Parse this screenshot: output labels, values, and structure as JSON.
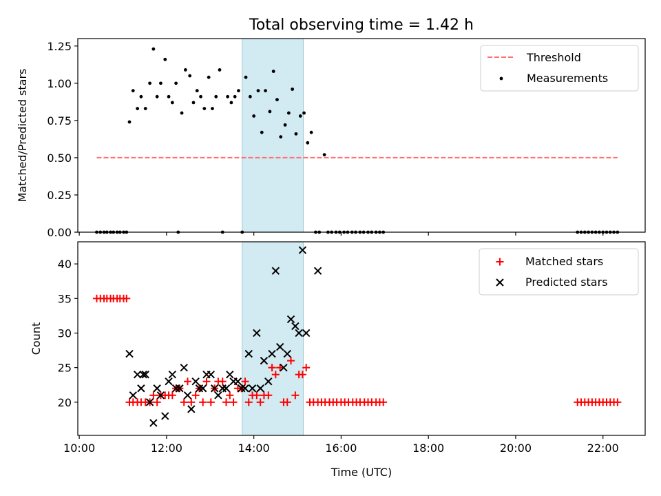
{
  "title": "Total observing time = 1.42 h",
  "chart_data": [
    {
      "type": "scatter",
      "ylabel": "Matched/Predicted stars",
      "xlim": [
        "09:58",
        "22:58"
      ],
      "ylim": [
        0,
        1.3
      ],
      "x_ticks": [
        "10:00",
        "12:00",
        "14:00",
        "16:00",
        "18:00",
        "20:00",
        "22:00"
      ],
      "y_ticks": [
        "0.00",
        "0.25",
        "0.50",
        "0.75",
        "1.00",
        "1.25"
      ],
      "shaded_span": {
        "start": "13:44",
        "end": "15:08",
        "color": "#add8e6"
      },
      "legend_position": "top-right",
      "threshold": {
        "name": "Threshold",
        "value": 0.5,
        "x_start": "10:24",
        "x_end": "22:20",
        "color": "#ff7070",
        "style": "dashed"
      },
      "series": [
        {
          "name": "Measurements",
          "color": "#000000",
          "points": [
            [
              "10:24",
              0
            ],
            [
              "10:29",
              0
            ],
            [
              "10:34",
              0
            ],
            [
              "10:38",
              0
            ],
            [
              "10:43",
              0
            ],
            [
              "10:47",
              0
            ],
            [
              "10:52",
              0
            ],
            [
              "10:56",
              0
            ],
            [
              "11:01",
              0
            ],
            [
              "11:05",
              0
            ],
            [
              "11:09",
              0.74
            ],
            [
              "11:14",
              0.95
            ],
            [
              "11:20",
              0.83
            ],
            [
              "11:25",
              0.91
            ],
            [
              "11:31",
              0.83
            ],
            [
              "11:37",
              1.0
            ],
            [
              "11:42",
              1.23
            ],
            [
              "11:47",
              0.91
            ],
            [
              "11:52",
              1.0
            ],
            [
              "11:58",
              1.16
            ],
            [
              "12:03",
              0.91
            ],
            [
              "12:08",
              0.87
            ],
            [
              "12:13",
              1.0
            ],
            [
              "12:16",
              0
            ],
            [
              "12:21",
              0.8
            ],
            [
              "12:26",
              1.09
            ],
            [
              "12:32",
              1.05
            ],
            [
              "12:37",
              0.87
            ],
            [
              "12:42",
              0.95
            ],
            [
              "12:47",
              0.91
            ],
            [
              "12:52",
              0.83
            ],
            [
              "12:58",
              1.04
            ],
            [
              "13:03",
              0.83
            ],
            [
              "13:08",
              0.91
            ],
            [
              "13:13",
              1.09
            ],
            [
              "13:17",
              0
            ],
            [
              "13:24",
              0.91
            ],
            [
              "13:29",
              0.87
            ],
            [
              "13:34",
              0.91
            ],
            [
              "13:39",
              0.95
            ],
            [
              "13:44",
              0
            ],
            [
              "13:49",
              1.04
            ],
            [
              "13:55",
              0.91
            ],
            [
              "14:00",
              0.78
            ],
            [
              "14:06",
              0.95
            ],
            [
              "14:11",
              0.67
            ],
            [
              "14:16",
              0.95
            ],
            [
              "14:22",
              0.81
            ],
            [
              "14:27",
              1.08
            ],
            [
              "14:32",
              0.89
            ],
            [
              "14:37",
              0.64
            ],
            [
              "14:43",
              0.72
            ],
            [
              "14:48",
              0.8
            ],
            [
              "14:53",
              0.96
            ],
            [
              "14:58",
              0.66
            ],
            [
              "15:04",
              0.78
            ],
            [
              "15:09",
              0.8
            ],
            [
              "15:14",
              0.6
            ],
            [
              "15:19",
              0.67
            ],
            [
              "15:25",
              0
            ],
            [
              "15:30",
              0
            ],
            [
              "15:37",
              0.52
            ],
            [
              "15:42",
              0
            ],
            [
              "15:47",
              0
            ],
            [
              "15:53",
              0
            ],
            [
              "15:58",
              0
            ],
            [
              "16:04",
              0
            ],
            [
              "16:09",
              0
            ],
            [
              "16:15",
              0
            ],
            [
              "16:20",
              0
            ],
            [
              "16:26",
              0
            ],
            [
              "16:31",
              0
            ],
            [
              "16:37",
              0
            ],
            [
              "16:42",
              0
            ],
            [
              "16:48",
              0
            ],
            [
              "16:53",
              0
            ],
            [
              "16:58",
              0
            ],
            [
              "21:25",
              0
            ],
            [
              "21:30",
              0
            ],
            [
              "21:35",
              0
            ],
            [
              "21:40",
              0
            ],
            [
              "21:45",
              0
            ],
            [
              "21:50",
              0
            ],
            [
              "21:55",
              0
            ],
            [
              "22:00",
              0
            ],
            [
              "22:05",
              0
            ],
            [
              "22:10",
              0
            ],
            [
              "22:15",
              0
            ],
            [
              "22:20",
              0
            ]
          ]
        }
      ]
    },
    {
      "type": "scatter",
      "ylabel": "Count",
      "xlabel": "Time (UTC)",
      "xlim": [
        "09:58",
        "22:58"
      ],
      "ylim": [
        15.2,
        43.2
      ],
      "x_ticks": [
        "10:00",
        "12:00",
        "14:00",
        "16:00",
        "18:00",
        "20:00",
        "22:00"
      ],
      "y_ticks": [
        "20",
        "25",
        "30",
        "35",
        "40"
      ],
      "shaded_span": {
        "start": "13:44",
        "end": "15:08",
        "color": "#add8e6"
      },
      "legend_position": "top-right",
      "series": [
        {
          "name": "Matched stars",
          "color": "#ff0000",
          "marker": "plus",
          "points": [
            [
              "10:24",
              35
            ],
            [
              "10:29",
              35
            ],
            [
              "10:34",
              35
            ],
            [
              "10:38",
              35
            ],
            [
              "10:43",
              35
            ],
            [
              "10:47",
              35
            ],
            [
              "10:52",
              35
            ],
            [
              "10:56",
              35
            ],
            [
              "11:01",
              35
            ],
            [
              "11:05",
              35
            ],
            [
              "11:09",
              20
            ],
            [
              "11:14",
              20
            ],
            [
              "11:20",
              20
            ],
            [
              "11:25",
              20
            ],
            [
              "11:31",
              20
            ],
            [
              "11:37",
              20
            ],
            [
              "11:42",
              21
            ],
            [
              "11:47",
              20
            ],
            [
              "11:52",
              21
            ],
            [
              "11:58",
              21
            ],
            [
              "12:03",
              21
            ],
            [
              "12:08",
              21
            ],
            [
              "12:13",
              22
            ],
            [
              "12:18",
              22
            ],
            [
              "12:24",
              20
            ],
            [
              "12:29",
              23
            ],
            [
              "12:34",
              20
            ],
            [
              "12:40",
              21
            ],
            [
              "12:45",
              22
            ],
            [
              "12:50",
              20
            ],
            [
              "12:55",
              23
            ],
            [
              "13:01",
              20
            ],
            [
              "13:06",
              22
            ],
            [
              "13:11",
              23
            ],
            [
              "13:17",
              23
            ],
            [
              "13:22",
              20
            ],
            [
              "13:27",
              21
            ],
            [
              "13:32",
              20
            ],
            [
              "13:38",
              22
            ],
            [
              "13:43",
              22
            ],
            [
              "13:48",
              23
            ],
            [
              "13:53",
              20
            ],
            [
              "13:58",
              21
            ],
            [
              "14:04",
              21
            ],
            [
              "14:09",
              20
            ],
            [
              "14:14",
              21
            ],
            [
              "14:20",
              21
            ],
            [
              "14:25",
              25
            ],
            [
              "14:30",
              24
            ],
            [
              "14:36",
              25
            ],
            [
              "14:41",
              20
            ],
            [
              "14:46",
              20
            ],
            [
              "14:51",
              26
            ],
            [
              "14:57",
              21
            ],
            [
              "15:02",
              24
            ],
            [
              "15:07",
              24
            ],
            [
              "15:12",
              25
            ],
            [
              "15:17",
              20
            ],
            [
              "15:22",
              20
            ],
            [
              "15:28",
              20
            ],
            [
              "15:33",
              20
            ],
            [
              "15:38",
              20
            ],
            [
              "15:44",
              20
            ],
            [
              "15:49",
              20
            ],
            [
              "15:54",
              20
            ],
            [
              "16:00",
              20
            ],
            [
              "16:05",
              20
            ],
            [
              "16:10",
              20
            ],
            [
              "16:16",
              20
            ],
            [
              "16:21",
              20
            ],
            [
              "16:26",
              20
            ],
            [
              "16:32",
              20
            ],
            [
              "16:37",
              20
            ],
            [
              "16:42",
              20
            ],
            [
              "16:48",
              20
            ],
            [
              "16:53",
              20
            ],
            [
              "16:58",
              20
            ],
            [
              "21:25",
              20
            ],
            [
              "21:30",
              20
            ],
            [
              "21:35",
              20
            ],
            [
              "21:40",
              20
            ],
            [
              "21:45",
              20
            ],
            [
              "21:50",
              20
            ],
            [
              "21:55",
              20
            ],
            [
              "22:00",
              20
            ],
            [
              "22:05",
              20
            ],
            [
              "22:10",
              20
            ],
            [
              "22:15",
              20
            ],
            [
              "22:20",
              20
            ]
          ]
        },
        {
          "name": "Predicted stars",
          "color": "#000000",
          "marker": "x",
          "points": [
            [
              "11:09",
              27
            ],
            [
              "11:14",
              21
            ],
            [
              "11:20",
              24
            ],
            [
              "11:25",
              22
            ],
            [
              "11:28",
              24
            ],
            [
              "11:31",
              24
            ],
            [
              "11:37",
              20
            ],
            [
              "11:42",
              17
            ],
            [
              "11:47",
              22
            ],
            [
              "11:52",
              21
            ],
            [
              "11:58",
              18
            ],
            [
              "12:03",
              23
            ],
            [
              "12:08",
              24
            ],
            [
              "12:13",
              22
            ],
            [
              "12:18",
              22
            ],
            [
              "12:24",
              25
            ],
            [
              "12:29",
              21
            ],
            [
              "12:34",
              19
            ],
            [
              "12:40",
              23
            ],
            [
              "12:45",
              22
            ],
            [
              "12:50",
              22
            ],
            [
              "12:55",
              24
            ],
            [
              "13:01",
              24
            ],
            [
              "13:06",
              22
            ],
            [
              "13:11",
              21
            ],
            [
              "13:17",
              22
            ],
            [
              "13:22",
              22
            ],
            [
              "13:27",
              24
            ],
            [
              "13:32",
              23
            ],
            [
              "13:38",
              23
            ],
            [
              "13:43",
              22
            ],
            [
              "13:48",
              22
            ],
            [
              "13:53",
              27
            ],
            [
              "13:58",
              22
            ],
            [
              "14:04",
              30
            ],
            [
              "14:09",
              22
            ],
            [
              "14:14",
              26
            ],
            [
              "14:20",
              23
            ],
            [
              "14:25",
              27
            ],
            [
              "14:30",
              39
            ],
            [
              "14:36",
              28
            ],
            [
              "14:41",
              25
            ],
            [
              "14:46",
              27
            ],
            [
              "14:51",
              32
            ],
            [
              "14:57",
              31
            ],
            [
              "15:02",
              30
            ],
            [
              "15:07",
              42
            ],
            [
              "15:12",
              30
            ],
            [
              "15:28",
              39
            ]
          ]
        }
      ]
    }
  ]
}
